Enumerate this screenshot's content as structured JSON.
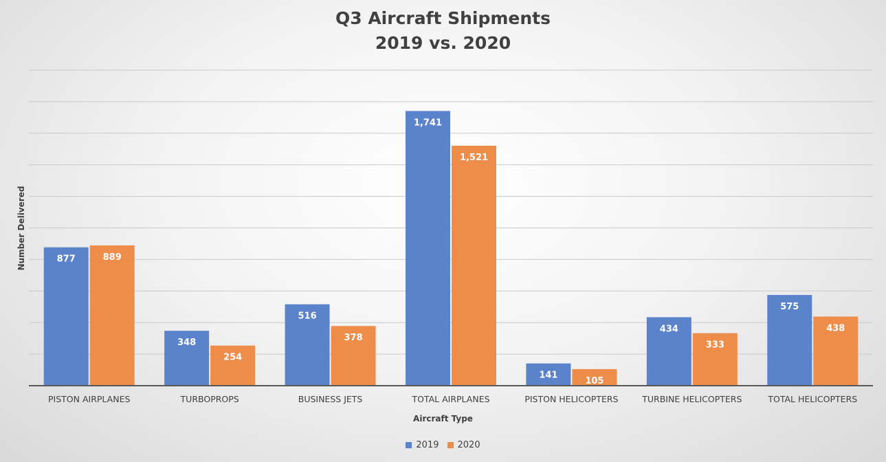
{
  "chart_data": {
    "type": "bar",
    "title": "Q3 Aircraft Shipments",
    "subtitle": "2019 vs. 2020",
    "xlabel": "Aircraft Type",
    "ylabel": "Number Delivered",
    "categories": [
      "PISTON AIRPLANES",
      "TURBOPROPS",
      "BUSINESS JETS",
      "TOTAL AIRPLANES",
      "PISTON HELICOPTERS",
      "TURBINE HELICOPTERS",
      "TOTAL HELICOPTERS"
    ],
    "series": [
      {
        "name": "2019",
        "color": "#5b83cc",
        "values": [
          877,
          348,
          516,
          1741,
          141,
          434,
          575
        ],
        "labels": [
          "877",
          "348",
          "516",
          "1,741",
          "141",
          "434",
          "575"
        ]
      },
      {
        "name": "2020",
        "color": "#ee8c4a",
        "values": [
          889,
          254,
          378,
          1521,
          105,
          333,
          438
        ],
        "labels": [
          "889",
          "254",
          "378",
          "1,521",
          "105",
          "333",
          "438"
        ]
      }
    ],
    "ylim": [
      0,
      2000
    ],
    "grid": true,
    "legend": "bottom"
  }
}
